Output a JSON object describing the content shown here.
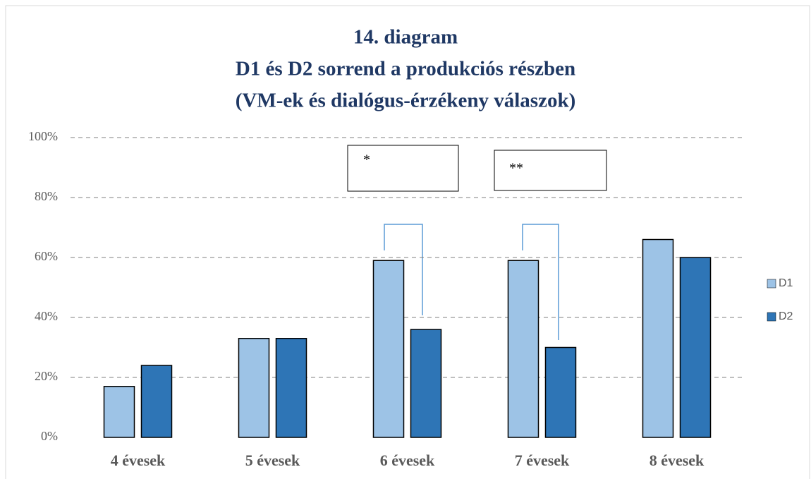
{
  "chart_data": {
    "type": "bar",
    "title": [
      "14. diagram",
      "D1 és D2 sorrend a produkciós részben",
      "(VM-ek és dialógus-érzékeny válaszok)"
    ],
    "categories": [
      "4 évesek",
      "5 évesek",
      "6 évesek",
      "7 évesek",
      "8 évesek"
    ],
    "series": [
      {
        "name": "D1",
        "color": "#9dc3e6",
        "values": [
          17,
          33,
          59,
          59,
          66
        ]
      },
      {
        "name": "D2",
        "color": "#2e75b6",
        "values": [
          24,
          33,
          36,
          30,
          60
        ]
      }
    ],
    "ylim": [
      0,
      100
    ],
    "yticks": [
      {
        "value": 0,
        "label": "0%"
      },
      {
        "value": 20,
        "label": "20%"
      },
      {
        "value": 40,
        "label": "40%"
      },
      {
        "value": 60,
        "label": "60%"
      },
      {
        "value": 80,
        "label": "80%"
      },
      {
        "value": 100,
        "label": "100%"
      }
    ],
    "grid": true,
    "legend": "right",
    "annotations": [
      "*",
      "**"
    ]
  }
}
